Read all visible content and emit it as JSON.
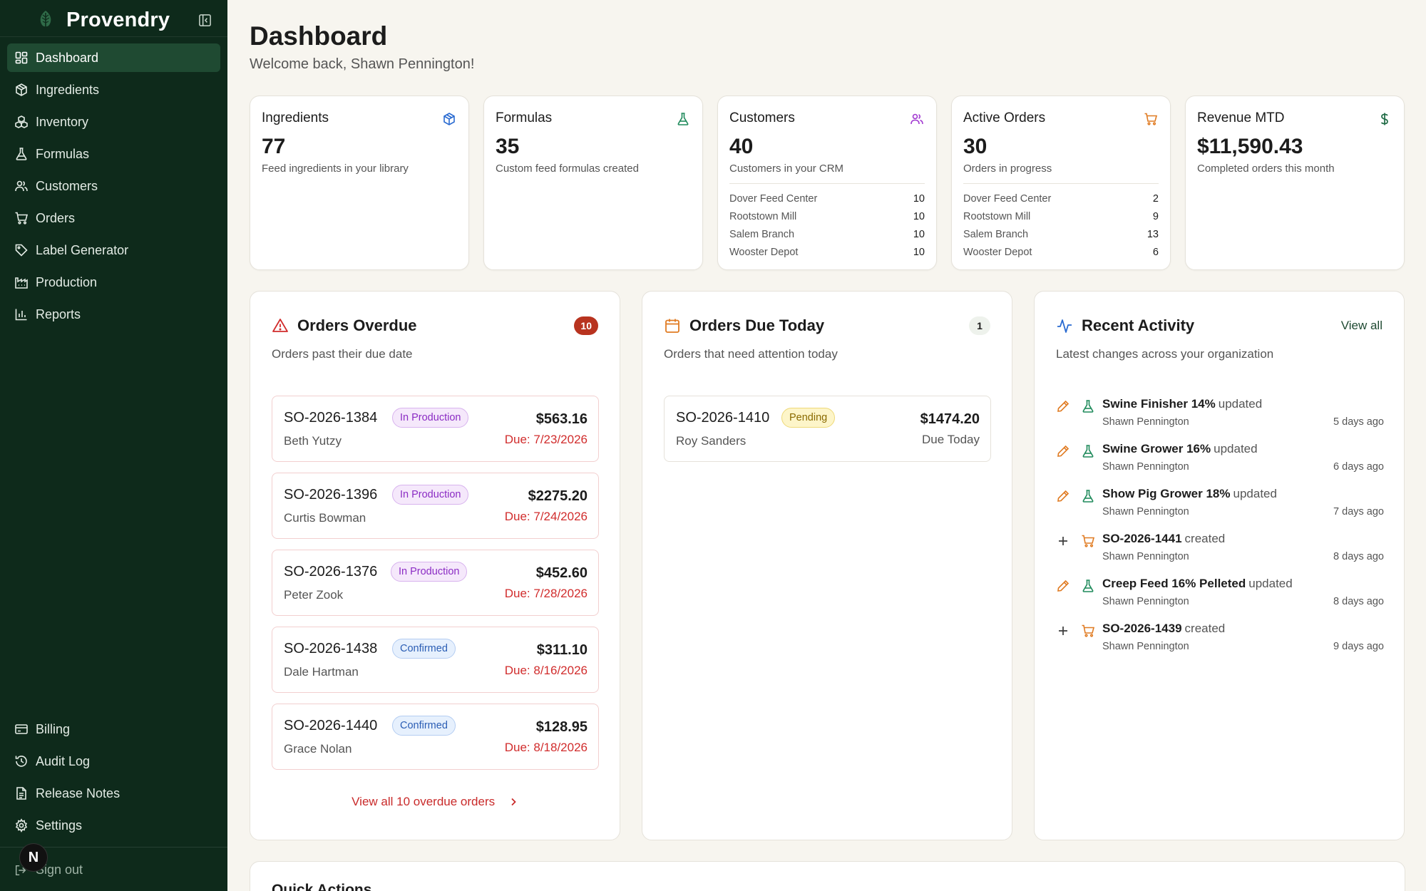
{
  "app": {
    "name": "Provendry"
  },
  "nav": {
    "items": [
      {
        "label": "Dashboard",
        "icon": "dashboard-icon",
        "active": true
      },
      {
        "label": "Ingredients",
        "icon": "package-icon"
      },
      {
        "label": "Inventory",
        "icon": "boxes-icon"
      },
      {
        "label": "Formulas",
        "icon": "flask-icon"
      },
      {
        "label": "Customers",
        "icon": "users-icon"
      },
      {
        "label": "Orders",
        "icon": "cart-icon"
      },
      {
        "label": "Label Generator",
        "icon": "tag-icon"
      },
      {
        "label": "Production",
        "icon": "factory-icon"
      },
      {
        "label": "Reports",
        "icon": "bar-chart-icon"
      }
    ],
    "bottom": [
      {
        "label": "Billing",
        "icon": "credit-card-icon"
      },
      {
        "label": "Audit Log",
        "icon": "history-icon"
      },
      {
        "label": "Release Notes",
        "icon": "file-text-icon"
      },
      {
        "label": "Settings",
        "icon": "gear-icon"
      }
    ],
    "signout": "Sign out",
    "avatar_letter": "N"
  },
  "header": {
    "title": "Dashboard",
    "welcome": "Welcome back, Shawn Pennington!"
  },
  "stats": {
    "ingredients": {
      "label": "Ingredients",
      "value": "77",
      "sub": "Feed ingredients in your library"
    },
    "formulas": {
      "label": "Formulas",
      "value": "35",
      "sub": "Custom feed formulas created"
    },
    "customers": {
      "label": "Customers",
      "value": "40",
      "sub": "Customers in your CRM",
      "rows": [
        {
          "name": "Dover Feed Center",
          "count": "10"
        },
        {
          "name": "Rootstown Mill",
          "count": "10"
        },
        {
          "name": "Salem Branch",
          "count": "10"
        },
        {
          "name": "Wooster Depot",
          "count": "10"
        }
      ]
    },
    "orders": {
      "label": "Active Orders",
      "value": "30",
      "sub": "Orders in progress",
      "rows": [
        {
          "name": "Dover Feed Center",
          "count": "2"
        },
        {
          "name": "Rootstown Mill",
          "count": "9"
        },
        {
          "name": "Salem Branch",
          "count": "13"
        },
        {
          "name": "Wooster Depot",
          "count": "6"
        }
      ]
    },
    "revenue": {
      "label": "Revenue MTD",
      "value": "$11,590.43",
      "sub": "Completed orders this month"
    }
  },
  "overdue": {
    "title": "Orders Overdue",
    "count": "10",
    "desc": "Orders past their due date",
    "orders": [
      {
        "id": "SO-2026-1384",
        "status": "In Production",
        "customer": "Beth Yutzy",
        "amount": "$563.16",
        "due": "Due: 7/23/2026"
      },
      {
        "id": "SO-2026-1396",
        "status": "In Production",
        "customer": "Curtis Bowman",
        "amount": "$2275.20",
        "due": "Due: 7/24/2026"
      },
      {
        "id": "SO-2026-1376",
        "status": "In Production",
        "customer": "Peter Zook",
        "amount": "$452.60",
        "due": "Due: 7/28/2026"
      },
      {
        "id": "SO-2026-1438",
        "status": "Confirmed",
        "customer": "Dale Hartman",
        "amount": "$311.10",
        "due": "Due: 8/16/2026"
      },
      {
        "id": "SO-2026-1440",
        "status": "Confirmed",
        "customer": "Grace Nolan",
        "amount": "$128.95",
        "due": "Due: 8/18/2026"
      }
    ],
    "view_all": "View all 10 overdue orders"
  },
  "due_today": {
    "title": "Orders Due Today",
    "count": "1",
    "desc": "Orders that need attention today",
    "orders": [
      {
        "id": "SO-2026-1410",
        "status": "Pending",
        "customer": "Roy Sanders",
        "amount": "$1474.20",
        "due": "Due Today"
      }
    ]
  },
  "activity": {
    "title": "Recent Activity",
    "view_all": "View all",
    "desc": "Latest changes across your organization",
    "items": [
      {
        "action": "edit",
        "kind": "formula",
        "name": "Swine Finisher 14%",
        "verb": "updated",
        "user": "Shawn Pennington",
        "when": "5 days ago"
      },
      {
        "action": "edit",
        "kind": "formula",
        "name": "Swine Grower 16%",
        "verb": "updated",
        "user": "Shawn Pennington",
        "when": "6 days ago"
      },
      {
        "action": "edit",
        "kind": "formula",
        "name": "Show Pig Grower 18%",
        "verb": "updated",
        "user": "Shawn Pennington",
        "when": "7 days ago"
      },
      {
        "action": "create",
        "kind": "order",
        "name": "SO-2026-1441",
        "verb": "created",
        "user": "Shawn Pennington",
        "when": "8 days ago"
      },
      {
        "action": "edit",
        "kind": "formula",
        "name": "Creep Feed 16% Pelleted",
        "verb": "updated",
        "user": "Shawn Pennington",
        "when": "8 days ago"
      },
      {
        "action": "create",
        "kind": "order",
        "name": "SO-2026-1439",
        "verb": "created",
        "user": "Shawn Pennington",
        "when": "9 days ago"
      }
    ]
  },
  "quick_actions": {
    "title": "Quick Actions"
  },
  "colors": {
    "sidebar_bg": "#0e2a1b",
    "sidebar_active": "#1f4a32",
    "overdue_red": "#d12c2c",
    "accent_green": "#1f8a5b",
    "accent_orange": "#e07b22"
  }
}
